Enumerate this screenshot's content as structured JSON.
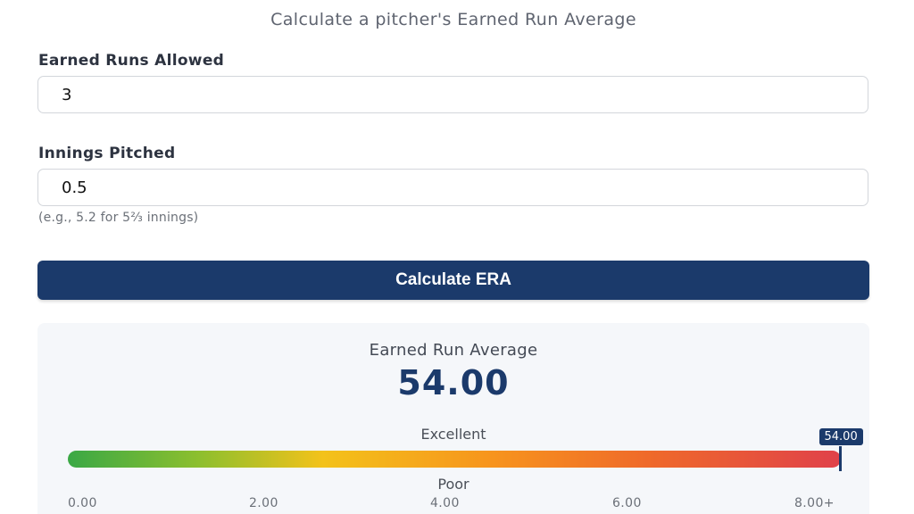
{
  "header": {
    "subtitle": "Calculate a pitcher's Earned Run Average"
  },
  "form": {
    "earned_runs": {
      "label": "Earned Runs Allowed",
      "value": "3"
    },
    "innings": {
      "label": "Innings Pitched",
      "value": "0.5",
      "hint": "(e.g., 5.2 for 5⅔ innings)"
    },
    "calculate_label": "Calculate ERA"
  },
  "result": {
    "label": "Earned Run Average",
    "value": "54.00",
    "scale": {
      "top_label": "Excellent",
      "bottom_label": "Poor",
      "marker_value": "54.00",
      "ticks": [
        "0.00",
        "2.00",
        "4.00",
        "6.00",
        "8.00+"
      ],
      "fill_fraction": 1.0
    }
  },
  "colors": {
    "accent": "#1b3a6b",
    "gauge_start": "#3aa845",
    "gauge_mid": "#f3c21a",
    "gauge_end": "#e0414a"
  }
}
